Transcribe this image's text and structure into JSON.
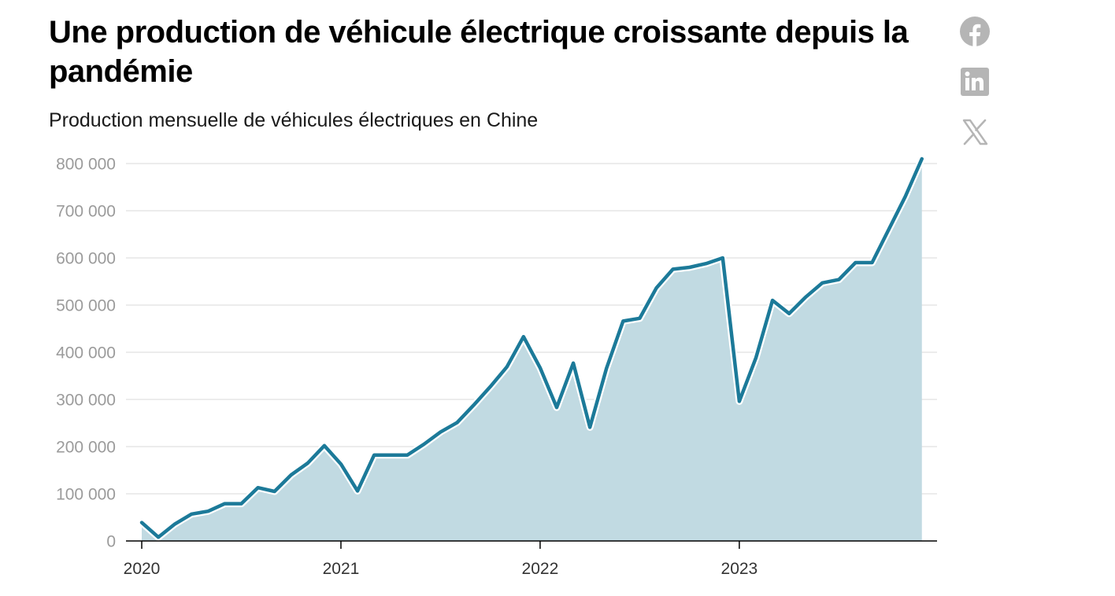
{
  "chart_data": {
    "type": "area",
    "title": "Une production de véhicule électrique croissante depuis la pandémie",
    "subtitle": "Production mensuelle de véhicules électriques en Chine",
    "x": [
      "2020-01",
      "2020-02",
      "2020-03",
      "2020-04",
      "2020-05",
      "2020-06",
      "2020-07",
      "2020-08",
      "2020-09",
      "2020-10",
      "2020-11",
      "2020-12",
      "2021-01",
      "2021-02",
      "2021-03",
      "2021-04",
      "2021-05",
      "2021-06",
      "2021-07",
      "2021-08",
      "2021-09",
      "2021-10",
      "2021-11",
      "2021-12",
      "2022-01",
      "2022-02",
      "2022-03",
      "2022-04",
      "2022-05",
      "2022-06",
      "2022-07",
      "2022-08",
      "2022-09",
      "2022-10",
      "2022-11",
      "2022-12",
      "2023-01",
      "2023-02",
      "2023-03",
      "2023-04",
      "2023-05",
      "2023-06",
      "2023-07",
      "2023-08",
      "2023-09",
      "2023-10",
      "2023-11",
      "2023-12"
    ],
    "series": [
      {
        "values": [
          39000,
          8000,
          36000,
          57000,
          63000,
          79000,
          79000,
          113000,
          105000,
          140000,
          165000,
          202000,
          163000,
          106000,
          182000,
          182000,
          182000,
          205000,
          231000,
          251000,
          288000,
          327000,
          369000,
          433000,
          367000,
          283000,
          377000,
          241000,
          366000,
          466000,
          472000,
          536000,
          576000,
          580000,
          588000,
          600000,
          296000,
          388000,
          510000,
          482000,
          517000,
          547000,
          554000,
          590000,
          590000,
          660000,
          730000,
          810000
        ]
      }
    ],
    "xlabel": "",
    "ylabel": "",
    "ylim": [
      0,
      800000
    ],
    "yticks": [
      0,
      100000,
      200000,
      300000,
      400000,
      500000,
      600000,
      700000,
      800000
    ],
    "ytick_labels": [
      "0",
      "100 000",
      "200 000",
      "300 000",
      "400 000",
      "500 000",
      "600 000",
      "700 000",
      "800 000"
    ],
    "xticks": [
      "2020-01",
      "2021-01",
      "2022-01",
      "2023-01"
    ],
    "xtick_labels": [
      "2020",
      "2021",
      "2022",
      "2023"
    ],
    "grid": true,
    "legend": "none",
    "colors": {
      "line": "#1c7a99",
      "area": "#c1dae2",
      "grid": "#e6e6e6",
      "axis": "#000000"
    }
  },
  "share": [
    {
      "name": "facebook-icon",
      "label": "Facebook"
    },
    {
      "name": "linkedin-icon",
      "label": "LinkedIn"
    },
    {
      "name": "x-icon",
      "label": "X"
    }
  ]
}
